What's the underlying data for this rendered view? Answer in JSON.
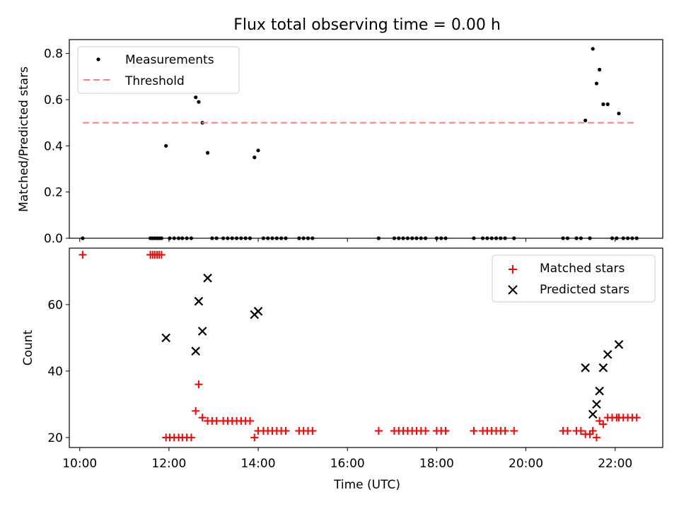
{
  "figure": {
    "title": "Flux total observing time = 0.00 h",
    "xlabel": "Time (UTC)"
  },
  "chart_data": [
    {
      "type": "scatter",
      "ylabel": "Matched/Predicted stars",
      "ylim": [
        0,
        0.86
      ],
      "yticks": [
        "0.0",
        "0.2",
        "0.4",
        "0.6",
        "0.8"
      ],
      "ytick_values": [
        0,
        0.2,
        0.4,
        0.6,
        0.8
      ],
      "xlim": [
        "09:46",
        "23:04"
      ],
      "xtick_values": [
        "10:00",
        "12:00",
        "14:00",
        "16:00",
        "18:00",
        "20:00",
        "22:00"
      ],
      "legend_position": "upper-left",
      "legend": [
        "Measurements",
        "Threshold"
      ],
      "series": [
        {
          "name": "Measurements",
          "color": "#000000",
          "marker": "dot",
          "points": [
            [
              "10:04",
              0
            ],
            [
              "11:35",
              0
            ],
            [
              "11:38",
              0
            ],
            [
              "11:41",
              0
            ],
            [
              "11:44",
              0
            ],
            [
              "11:47",
              0
            ],
            [
              "11:50",
              0
            ],
            [
              "11:56",
              0.4
            ],
            [
              "12:01",
              0
            ],
            [
              "12:07",
              0
            ],
            [
              "12:13",
              0
            ],
            [
              "12:18",
              0
            ],
            [
              "12:24",
              0
            ],
            [
              "12:30",
              0
            ],
            [
              "12:36",
              0.61
            ],
            [
              "12:40",
              0.59
            ],
            [
              "12:45",
              0.5
            ],
            [
              "12:52",
              0.37
            ],
            [
              "12:58",
              0
            ],
            [
              "13:04",
              0
            ],
            [
              "13:13",
              0
            ],
            [
              "13:19",
              0
            ],
            [
              "13:25",
              0
            ],
            [
              "13:31",
              0
            ],
            [
              "13:37",
              0
            ],
            [
              "13:43",
              0
            ],
            [
              "13:49",
              0
            ],
            [
              "13:55",
              0.35
            ],
            [
              "14:00",
              0.38
            ],
            [
              "14:07",
              0
            ],
            [
              "14:13",
              0
            ],
            [
              "14:19",
              0
            ],
            [
              "14:25",
              0
            ],
            [
              "14:31",
              0
            ],
            [
              "14:37",
              0
            ],
            [
              "14:55",
              0
            ],
            [
              "15:01",
              0
            ],
            [
              "15:07",
              0
            ],
            [
              "15:13",
              0
            ],
            [
              "16:42",
              0
            ],
            [
              "17:03",
              0
            ],
            [
              "17:09",
              0
            ],
            [
              "17:15",
              0
            ],
            [
              "17:21",
              0
            ],
            [
              "17:27",
              0
            ],
            [
              "17:33",
              0
            ],
            [
              "17:39",
              0
            ],
            [
              "17:45",
              0
            ],
            [
              "18:00",
              0
            ],
            [
              "18:06",
              0
            ],
            [
              "18:12",
              0
            ],
            [
              "18:50",
              0
            ],
            [
              "19:02",
              0
            ],
            [
              "19:08",
              0
            ],
            [
              "19:14",
              0
            ],
            [
              "19:20",
              0
            ],
            [
              "19:26",
              0
            ],
            [
              "19:32",
              0
            ],
            [
              "19:44",
              0
            ],
            [
              "20:50",
              0
            ],
            [
              "20:56",
              0
            ],
            [
              "21:08",
              0
            ],
            [
              "21:14",
              0
            ],
            [
              "21:20",
              0.51
            ],
            [
              "21:26",
              0
            ],
            [
              "21:30",
              0.82
            ],
            [
              "21:35",
              0.67
            ],
            [
              "21:39",
              0.73
            ],
            [
              "21:44",
              0.58
            ],
            [
              "21:50",
              0.58
            ],
            [
              "21:56",
              0
            ],
            [
              "22:02",
              0
            ],
            [
              "22:05",
              0.54
            ],
            [
              "22:11",
              0
            ],
            [
              "22:17",
              0
            ],
            [
              "22:23",
              0
            ],
            [
              "22:29",
              0
            ]
          ]
        },
        {
          "name": "Threshold",
          "color": "#ff8080",
          "style": "dashed",
          "points": [
            [
              "10:04",
              0.5
            ],
            [
              "22:29",
              0.5
            ]
          ]
        }
      ]
    },
    {
      "type": "scatter",
      "ylabel": "Count",
      "ylim": [
        17,
        77
      ],
      "yticks": [
        "20",
        "40",
        "60"
      ],
      "ytick_values": [
        20,
        40,
        60
      ],
      "xlim": [
        "09:46",
        "23:04"
      ],
      "xticks": [
        "10:00",
        "12:00",
        "14:00",
        "16:00",
        "18:00",
        "20:00",
        "22:00"
      ],
      "xtick_values": [
        "10:00",
        "12:00",
        "14:00",
        "16:00",
        "18:00",
        "20:00",
        "22:00"
      ],
      "legend_position": "upper-right",
      "legend": [
        "Matched stars",
        "Predicted stars"
      ],
      "series": [
        {
          "name": "Matched stars",
          "color": "#ff0000",
          "marker": "plus",
          "points": [
            [
              "10:04",
              75
            ],
            [
              "11:35",
              75
            ],
            [
              "11:38",
              75
            ],
            [
              "11:41",
              75
            ],
            [
              "11:44",
              75
            ],
            [
              "11:47",
              75
            ],
            [
              "11:50",
              75
            ],
            [
              "11:56",
              20
            ],
            [
              "12:01",
              20
            ],
            [
              "12:07",
              20
            ],
            [
              "12:13",
              20
            ],
            [
              "12:18",
              20
            ],
            [
              "12:24",
              20
            ],
            [
              "12:30",
              20
            ],
            [
              "12:36",
              28
            ],
            [
              "12:40",
              36
            ],
            [
              "12:45",
              26
            ],
            [
              "12:52",
              25
            ],
            [
              "12:58",
              25
            ],
            [
              "13:04",
              25
            ],
            [
              "13:13",
              25
            ],
            [
              "13:19",
              25
            ],
            [
              "13:25",
              25
            ],
            [
              "13:31",
              25
            ],
            [
              "13:37",
              25
            ],
            [
              "13:43",
              25
            ],
            [
              "13:49",
              25
            ],
            [
              "13:55",
              20
            ],
            [
              "14:00",
              22
            ],
            [
              "14:07",
              22
            ],
            [
              "14:13",
              22
            ],
            [
              "14:19",
              22
            ],
            [
              "14:25",
              22
            ],
            [
              "14:31",
              22
            ],
            [
              "14:37",
              22
            ],
            [
              "14:55",
              22
            ],
            [
              "15:01",
              22
            ],
            [
              "15:07",
              22
            ],
            [
              "15:13",
              22
            ],
            [
              "16:42",
              22
            ],
            [
              "17:03",
              22
            ],
            [
              "17:09",
              22
            ],
            [
              "17:15",
              22
            ],
            [
              "17:21",
              22
            ],
            [
              "17:27",
              22
            ],
            [
              "17:33",
              22
            ],
            [
              "17:39",
              22
            ],
            [
              "17:45",
              22
            ],
            [
              "18:00",
              22
            ],
            [
              "18:06",
              22
            ],
            [
              "18:12",
              22
            ],
            [
              "18:50",
              22
            ],
            [
              "19:02",
              22
            ],
            [
              "19:08",
              22
            ],
            [
              "19:14",
              22
            ],
            [
              "19:20",
              22
            ],
            [
              "19:26",
              22
            ],
            [
              "19:32",
              22
            ],
            [
              "19:44",
              22
            ],
            [
              "20:50",
              22
            ],
            [
              "20:56",
              22
            ],
            [
              "21:08",
              22
            ],
            [
              "21:14",
              22
            ],
            [
              "21:20",
              21
            ],
            [
              "21:26",
              21
            ],
            [
              "21:30",
              22
            ],
            [
              "21:35",
              20
            ],
            [
              "21:39",
              25
            ],
            [
              "21:44",
              24
            ],
            [
              "21:50",
              26
            ],
            [
              "21:56",
              26
            ],
            [
              "22:02",
              26
            ],
            [
              "22:05",
              26
            ],
            [
              "22:11",
              26
            ],
            [
              "22:17",
              26
            ],
            [
              "22:23",
              26
            ],
            [
              "22:29",
              26
            ]
          ]
        },
        {
          "name": "Predicted stars",
          "color": "#000000",
          "marker": "x",
          "points": [
            [
              "11:56",
              50
            ],
            [
              "12:36",
              46
            ],
            [
              "12:40",
              61
            ],
            [
              "12:45",
              52
            ],
            [
              "12:52",
              68
            ],
            [
              "13:55",
              57
            ],
            [
              "14:00",
              58
            ],
            [
              "21:20",
              41
            ],
            [
              "21:30",
              27
            ],
            [
              "21:35",
              30
            ],
            [
              "21:39",
              34
            ],
            [
              "21:44",
              41
            ],
            [
              "21:50",
              45
            ],
            [
              "22:05",
              48
            ]
          ]
        }
      ]
    }
  ]
}
